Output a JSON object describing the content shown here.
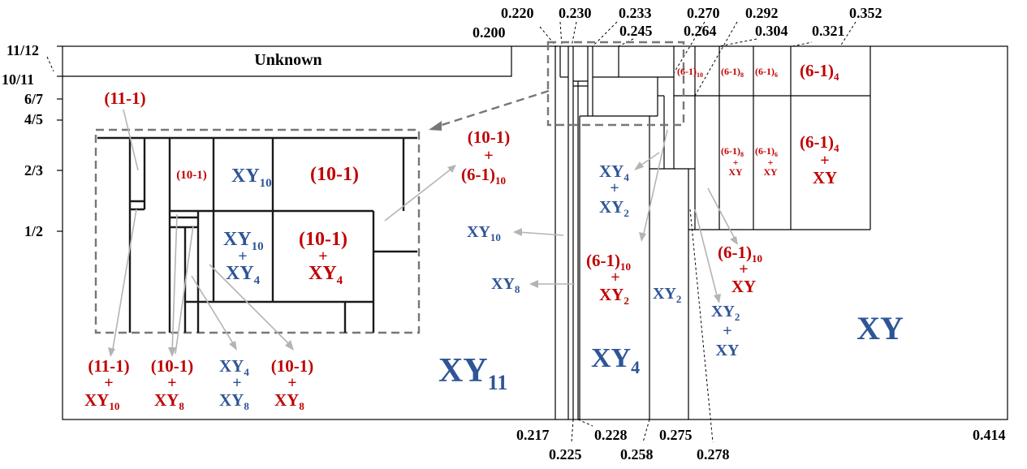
{
  "colors": {
    "red_label": "#c00000",
    "blue_label": "#2e5597",
    "arrow": "#b4b4b4",
    "dashed_box": "#777777",
    "lines": "#000000"
  },
  "y_ticks": [
    "11/12",
    "10/11",
    "6/7",
    "4/5",
    "2/3",
    "1/2"
  ],
  "top_ticks": [
    "0.200",
    "0.220",
    "0.230",
    "0.233",
    "0.245",
    "0.270",
    "0.264",
    "0.292",
    "0.304",
    "0.321",
    "0.352"
  ],
  "bottom_ticks": [
    "0.217",
    "0.225",
    "0.228",
    "0.258",
    "0.275",
    "0.278",
    "0.414"
  ],
  "labels": {
    "unknown": "Unknown",
    "xy11": "XY",
    "xy11_sub": "11",
    "xy4_big": "XY",
    "xy4_big_sub": "4",
    "xy_big": "XY",
    "xy2_mid": "XY",
    "xy2_mid_sub": "2",
    "xy10_ext": "XY",
    "xy10_ext_sub": "10",
    "xy8_ext": "XY",
    "xy8_ext_sub": "8",
    "r_10_1_a": "(10-1)",
    "plus": "+",
    "r_6_1": "(6-1)",
    "r_6_1_sub10": "10",
    "xy4_u": "XY",
    "xy4_u_sub": "4",
    "xy2_l": "XY",
    "xy2_l_sub": "2",
    "xy_plain": "XY",
    "six4": "(6-1)",
    "six4_sub": "4",
    "six6": "(6-1)",
    "six6_sub": "6",
    "six8": "(6-1)",
    "six8_sub": "8",
    "six10": "(6-1)",
    "six10_sub": "10",
    "inset_10_1_small": "(10-1)",
    "inset_xy10": "XY",
    "inset_xy10_sub": "10",
    "inset_10_1_big": "(10-1)",
    "inset_xy4": "XY",
    "inset_xy4_sub": "4",
    "top_11_1": "(11-1)",
    "r_11_1": "(11-1)",
    "xy10_l": "XY",
    "xy10_l_sub": "10",
    "r_10_1": "(10-1)",
    "xy8_l": "XY",
    "xy8_l_sub": "8",
    "xy4_l": "XY",
    "xy4_l_sub": "4",
    "xy8_b": "XY",
    "xy8_b_sub": "8"
  }
}
